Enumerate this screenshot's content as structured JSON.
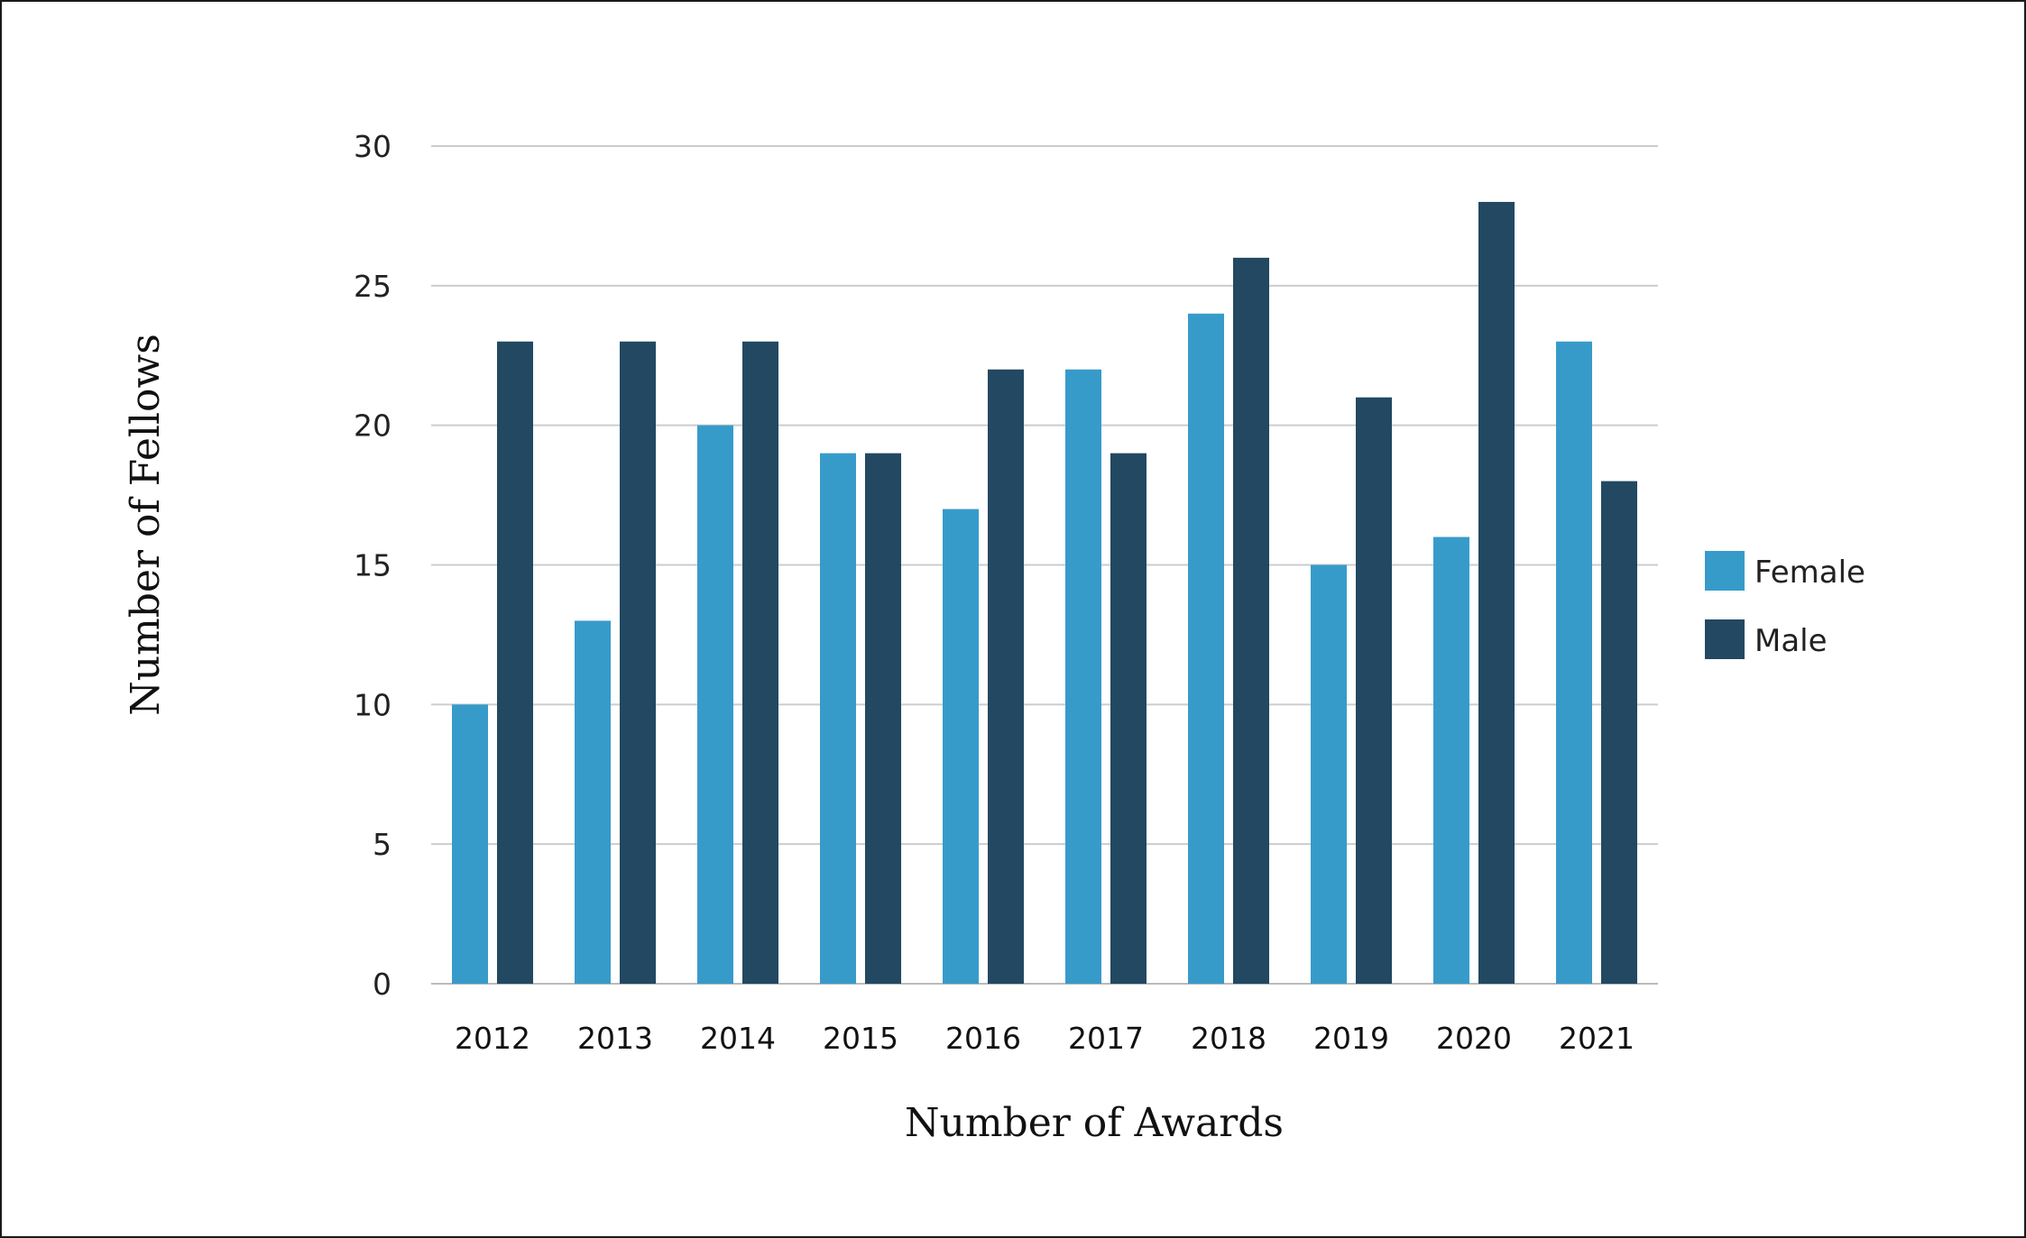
{
  "chart_data": {
    "type": "bar",
    "title": "",
    "xlabel": "Number of Awards",
    "ylabel": "Number of Fellows",
    "categories": [
      "2012",
      "2013",
      "2014",
      "2015",
      "2016",
      "2017",
      "2018",
      "2019",
      "2020",
      "2021"
    ],
    "series": [
      {
        "name": "Female",
        "color": "#379bca",
        "values": [
          10,
          13,
          20,
          19,
          17,
          22,
          24,
          15,
          16,
          23
        ]
      },
      {
        "name": "Male",
        "color": "#224862",
        "values": [
          23,
          23,
          23,
          19,
          22,
          19,
          26,
          21,
          28,
          18
        ]
      }
    ],
    "ylim": [
      0,
      30
    ],
    "yticks": [
      "0",
      "5",
      "10",
      "15",
      "20",
      "25",
      "30"
    ],
    "grid": true,
    "legend_position": "right"
  }
}
